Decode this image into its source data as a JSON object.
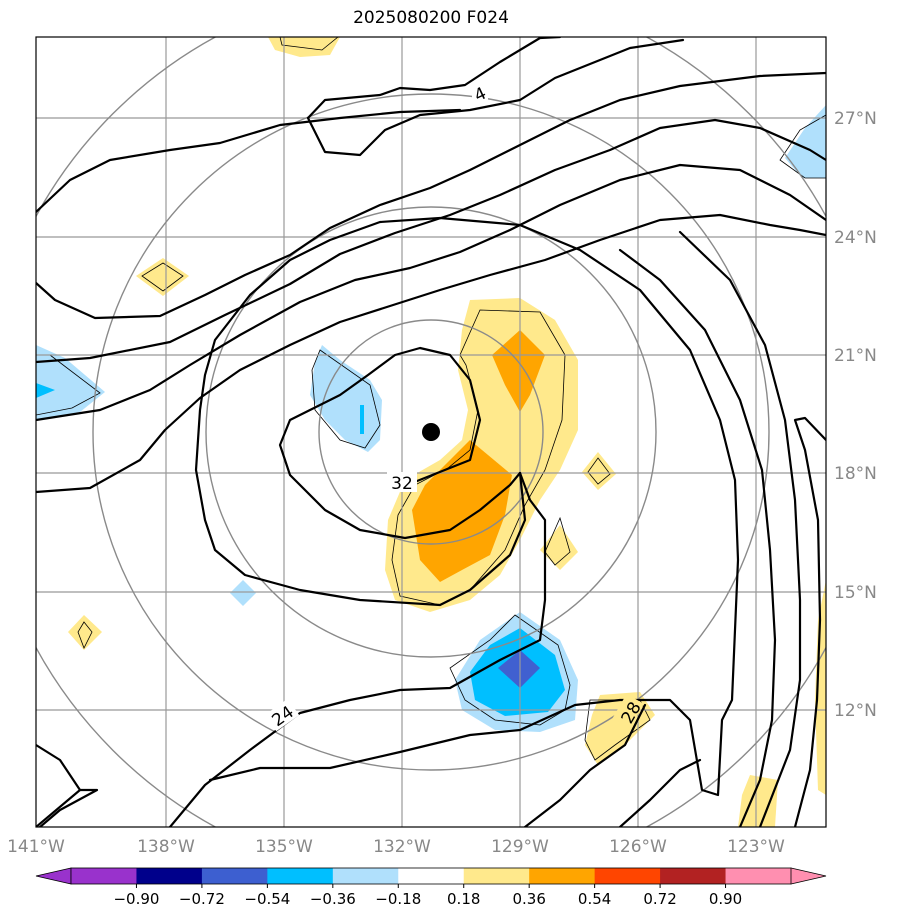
{
  "title": "2025080200 F024",
  "map": {
    "lon_range": [
      -141,
      -121
    ],
    "lat_range": [
      9,
      29
    ],
    "lon_ticks": [
      "141°W",
      "138°W",
      "135°W",
      "132°W",
      "129°W",
      "126°W",
      "123°W"
    ],
    "lat_ticks": [
      "27°N",
      "24°N",
      "21°N",
      "18°N",
      "15°N",
      "12°N"
    ],
    "contour_labels": [
      "4",
      "32",
      "24",
      "28"
    ],
    "storm_center": {
      "lon": -130.3,
      "lat": 19.0
    },
    "colors": {
      "pos_036": "#ffe98c",
      "pos_054": "#ffa500",
      "neg_036": "#b0e0fc",
      "neg_054": "#00bfff",
      "neg_072": "#4060d0"
    }
  },
  "colorbar": {
    "labels": [
      "−0.90",
      "−0.72",
      "−0.54",
      "−0.36",
      "−0.18",
      "0.18",
      "0.36",
      "0.54",
      "0.72",
      "0.90"
    ],
    "colors": [
      "#9932cc",
      "#00008b",
      "#3d5fd0",
      "#00bfff",
      "#b0e0fc",
      "#ffffff",
      "#ffe98c",
      "#ffa500",
      "#ff4500",
      "#b22222",
      "#ff8fb0",
      "#ff8fb0"
    ],
    "extend_min_color": "#9932cc",
    "extend_max_color": "#ff8fb0"
  }
}
